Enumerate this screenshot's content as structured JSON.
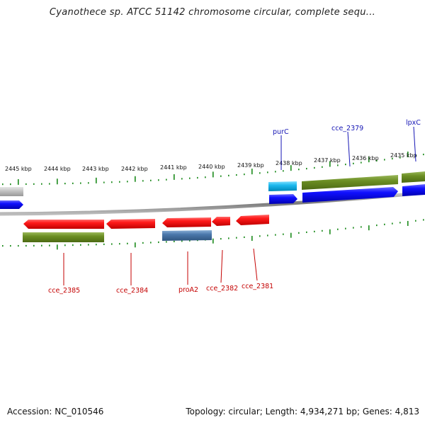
{
  "title": "Cyanothece sp. ATCC 51142 chromosome circular, complete sequ...",
  "footer": {
    "accession": "Accession: NC_010546",
    "summary": "Topology: circular; Length: 4,934,271 bp; Genes: 4,813"
  },
  "colors": {
    "forward_gene": "#0000ee",
    "reverse_gene": "#ee0000",
    "cds_feature": "#6b8e23",
    "rna_light_blue": "#00b4e6",
    "rna_steel_blue": "#4682b4",
    "grey_feature": "#b0b0b0",
    "tick_green": "#1a8a1a",
    "backbone": "#888888"
  },
  "scale_labels": [
    "2445 kbp",
    "2444 kbp",
    "2443 kbp",
    "2442 kbp",
    "2441 kbp",
    "2440 kbp",
    "2439 kbp",
    "2438 kbp",
    "2437 kbp",
    "2436 kbp",
    "2435 kbp"
  ],
  "labels_top": [
    "purC",
    "cce_2379",
    "lpxC"
  ],
  "labels_bottom": [
    "cce_2385",
    "cce_2384",
    "proA2",
    "cce_2382",
    "cce_2381"
  ]
}
